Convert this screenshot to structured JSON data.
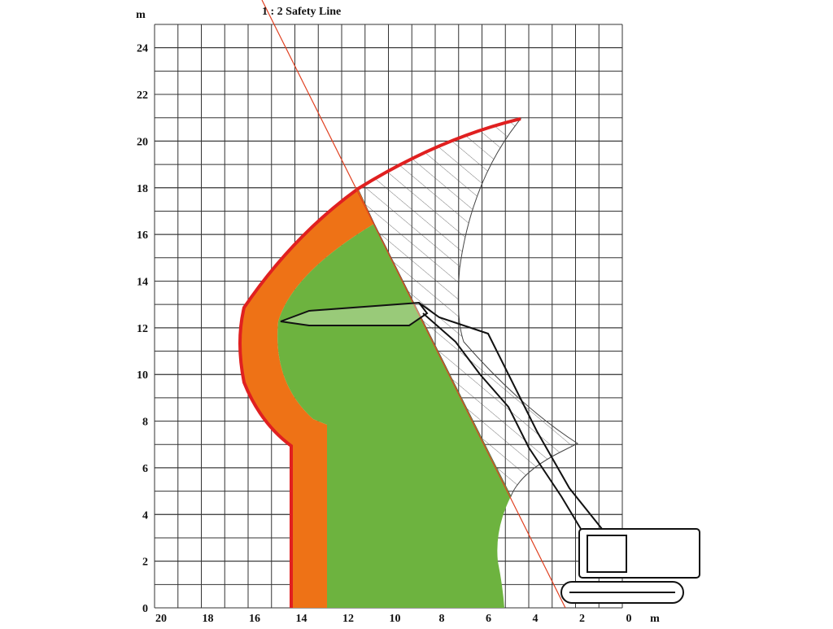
{
  "title": "1 : 2 Safety Line",
  "x_unit": "m",
  "y_unit": "m",
  "xlim": [
    20,
    0
  ],
  "ylim": [
    0,
    25
  ],
  "xticks": [
    20,
    18,
    16,
    14,
    12,
    10,
    8,
    6,
    4,
    2,
    0
  ],
  "yticks": [
    0,
    2,
    4,
    6,
    8,
    10,
    12,
    14,
    16,
    18,
    20,
    22,
    24
  ]
}
